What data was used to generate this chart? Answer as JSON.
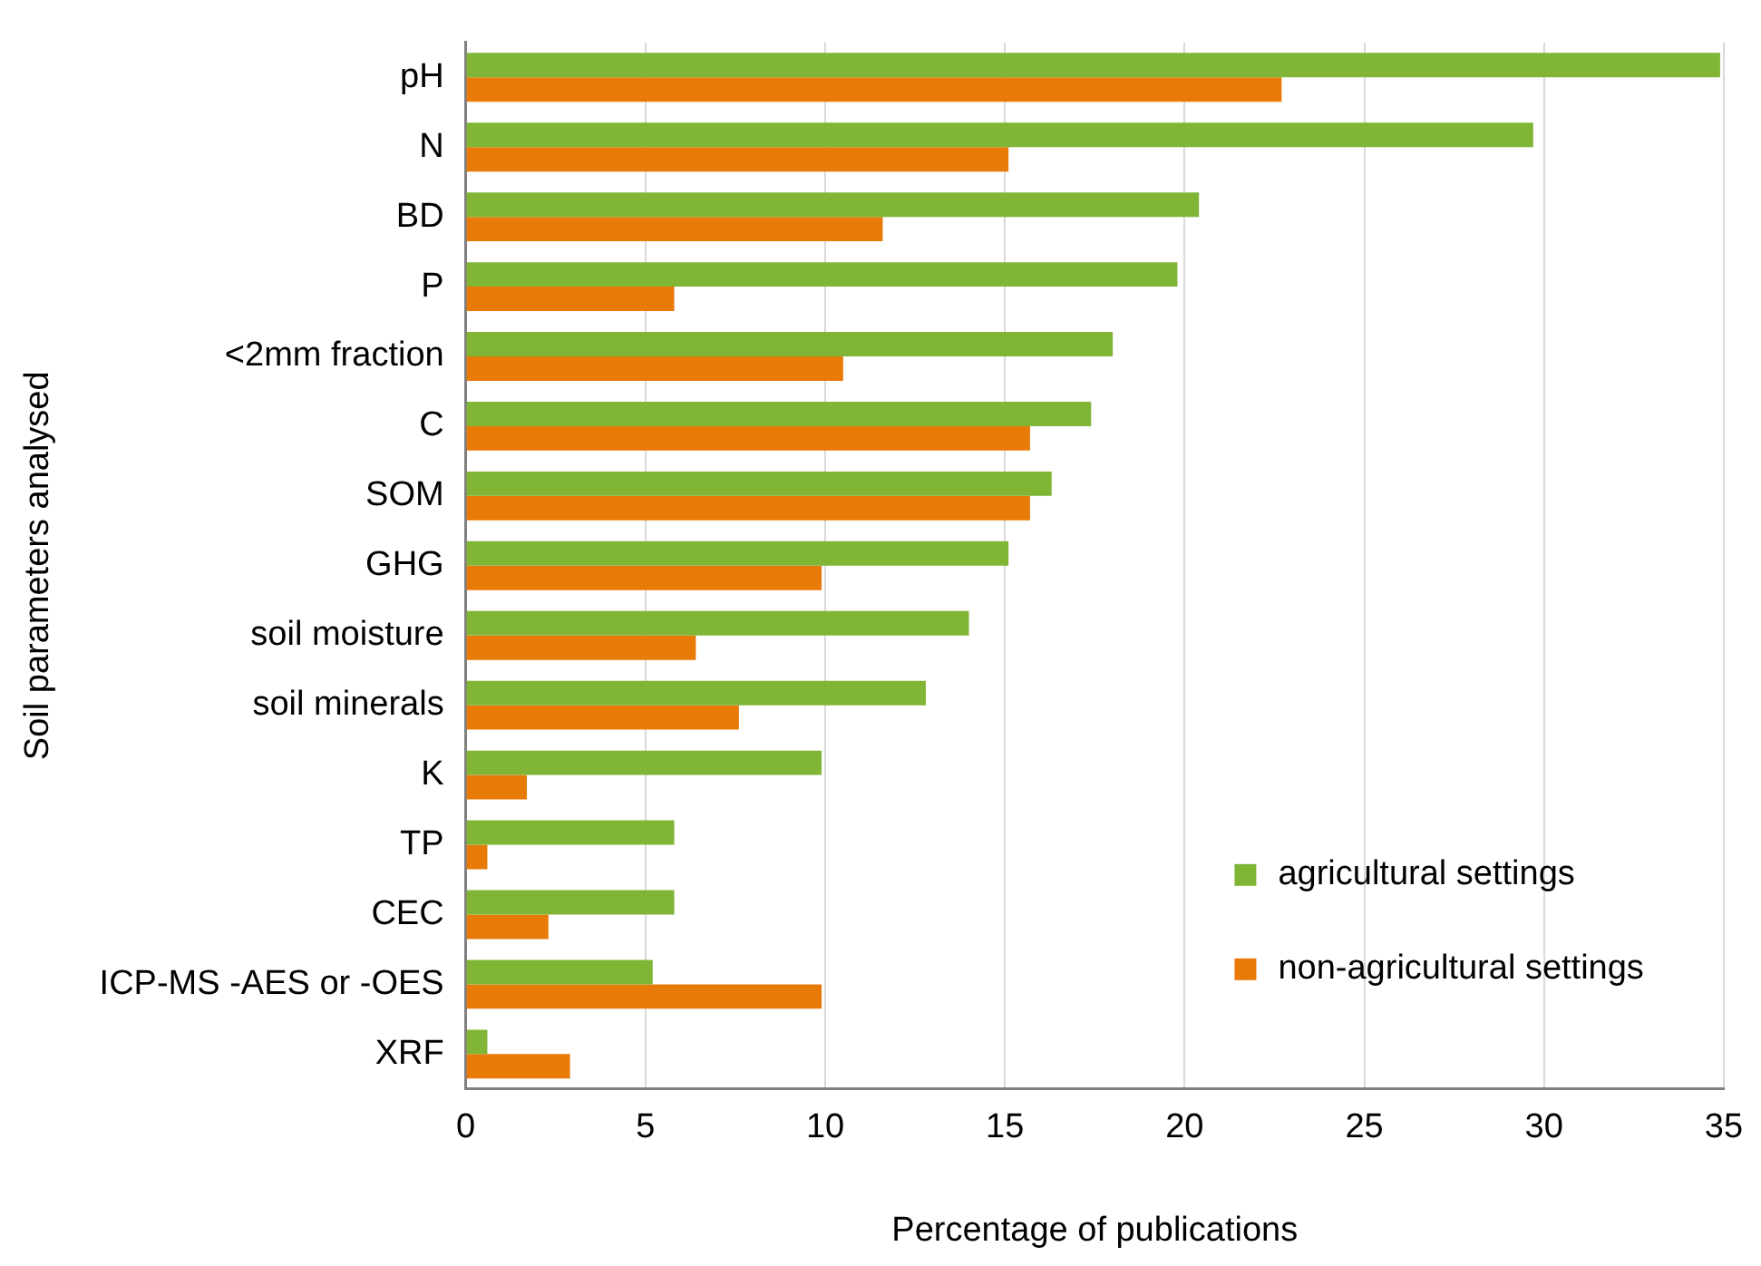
{
  "chart_data": {
    "type": "bar",
    "orientation": "horizontal",
    "xlabel": "Percentage of publications",
    "ylabel": "Soil parameters analysed",
    "categories": [
      "pH",
      "N",
      "BD",
      "P",
      "<2mm fraction",
      "C",
      "SOM",
      "GHG",
      "soil moisture",
      "soil minerals",
      "K",
      "TP",
      "CEC",
      "ICP-MS -AES or -OES",
      "XRF"
    ],
    "series": [
      {
        "name": "agricultural settings",
        "color": "#80b536",
        "values": [
          34.9,
          29.7,
          20.4,
          19.8,
          18.0,
          17.4,
          16.3,
          15.1,
          14.0,
          12.8,
          9.9,
          5.8,
          5.8,
          5.2,
          0.6
        ]
      },
      {
        "name": "non-agricultural settings",
        "color": "#e87a08",
        "values": [
          22.7,
          15.1,
          11.6,
          5.8,
          10.5,
          15.7,
          15.7,
          9.9,
          6.4,
          7.6,
          1.7,
          0.6,
          2.3,
          9.9,
          2.9
        ]
      }
    ],
    "xlim": [
      0,
      35
    ],
    "xticks": [
      0,
      5,
      10,
      15,
      20,
      25,
      30,
      35
    ],
    "grid": "x",
    "legend": "bottom right"
  }
}
